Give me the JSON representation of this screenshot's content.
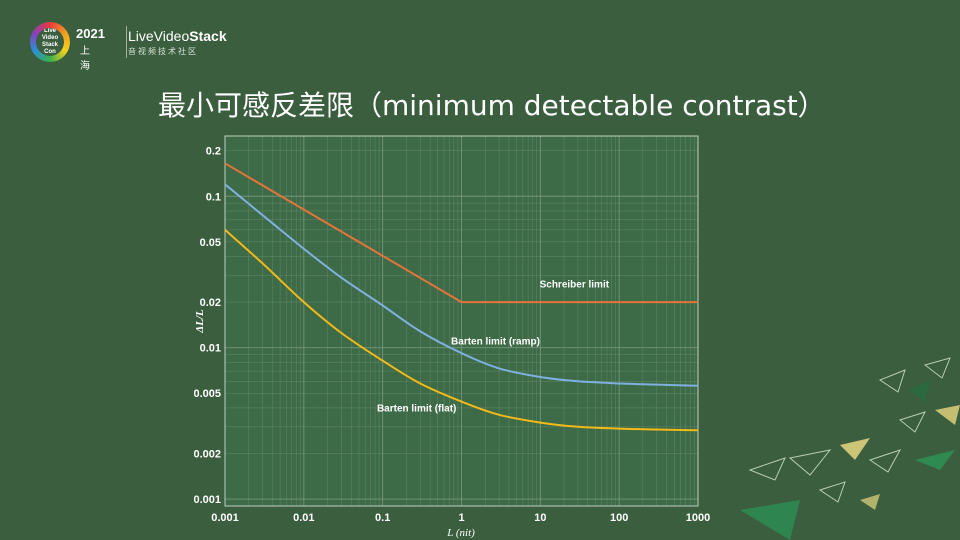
{
  "header": {
    "logo_text": "Live Video Stack Con",
    "event_year": "2021",
    "event_city": "上海",
    "brand_prefix": "LiveVideo",
    "brand_bold": "Stack",
    "brand_sub": "音视频技术社区"
  },
  "slide": {
    "title": "最小可感反差限（minimum detectable contrast）"
  },
  "colors": {
    "background": "#3a5e3e",
    "plot_background": "#3d6b47",
    "grid": "#7c9a80",
    "schreiber": "#e3743a",
    "barten_ramp": "#7fb1e0",
    "barten_flat": "#f2b918"
  },
  "chart_data": {
    "type": "line",
    "xlabel": "L (nit)",
    "ylabel": "ΔL/L",
    "xscale": "log",
    "yscale": "log",
    "xlim": [
      0.001,
      1000
    ],
    "ylim": [
      0.0009,
      0.25
    ],
    "grid": true,
    "x_tick_labels": [
      "0.001",
      "0.01",
      "0.1",
      "1",
      "10",
      "100",
      "1000"
    ],
    "y_tick_labels": [
      "0.2",
      "0.1",
      "0.05",
      "0.02",
      "0.01",
      "0.005",
      "0.002",
      "0.001"
    ],
    "series": [
      {
        "name": "Schreiber limit",
        "color": "#e3743a",
        "x": [
          0.001,
          1,
          1000
        ],
        "y": [
          0.165,
          0.02,
          0.02
        ],
        "label_at": {
          "x": 10,
          "y": 0.025
        }
      },
      {
        "name": "Barten limit (ramp)",
        "color": "#7fb1e0",
        "x": [
          0.001,
          0.003,
          0.01,
          0.03,
          0.1,
          0.3,
          1,
          3,
          10,
          30,
          100,
          300,
          1000
        ],
        "y": [
          0.12,
          0.075,
          0.045,
          0.029,
          0.019,
          0.0128,
          0.0092,
          0.0073,
          0.0064,
          0.006,
          0.0058,
          0.0057,
          0.0056
        ],
        "label_at": {
          "x": 1,
          "y": 0.0105
        }
      },
      {
        "name": "Barten limit (flat)",
        "color": "#f2b918",
        "x": [
          0.001,
          0.003,
          0.01,
          0.03,
          0.1,
          0.3,
          1,
          3,
          10,
          30,
          100,
          300,
          1000
        ],
        "y": [
          0.06,
          0.036,
          0.02,
          0.0125,
          0.0082,
          0.0058,
          0.0044,
          0.0036,
          0.0032,
          0.003,
          0.00292,
          0.00288,
          0.00285
        ],
        "label_at": {
          "x": 0.1,
          "y": 0.0038
        }
      }
    ]
  }
}
